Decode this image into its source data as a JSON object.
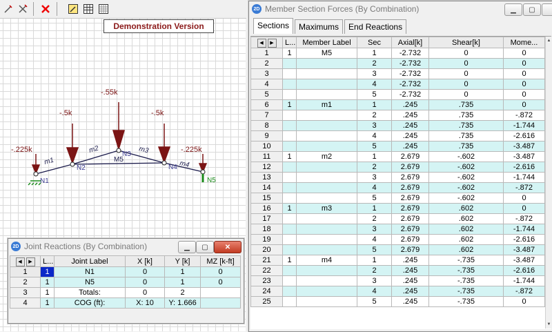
{
  "banner": "Demonstration Version",
  "joint_reactions": {
    "title": "Joint Reactions (By Combination)",
    "columns": [
      "L...",
      "Joint Label",
      "X [k]",
      "Y [k]",
      "MZ [k-ft]"
    ],
    "rows": [
      {
        "n": "1",
        "lc": "1",
        "label": "N1",
        "x": "0",
        "y": "1",
        "mz": "0"
      },
      {
        "n": "2",
        "lc": "1",
        "label": "N5",
        "x": "0",
        "y": "1",
        "mz": "0"
      },
      {
        "n": "3",
        "lc": "1",
        "label": "Totals:",
        "x": "0",
        "y": "2",
        "mz": ""
      },
      {
        "n": "4",
        "lc": "1",
        "label": "COG (ft):",
        "x": "X: 10",
        "y": "Y: 1.666",
        "mz": ""
      }
    ]
  },
  "section_forces": {
    "title": "Member Section Forces (By Combination)",
    "tabs": [
      "Sections",
      "Maximums",
      "End Reactions"
    ],
    "columns": [
      "L...",
      "Member Label",
      "Sec",
      "Axial[k]",
      "Shear[k]",
      "Mome..."
    ],
    "rows": [
      {
        "n": "1",
        "lc": "1",
        "m": "M5",
        "s": "1",
        "a": "-2.732",
        "v": "0",
        "mo": "0"
      },
      {
        "n": "2",
        "lc": "",
        "m": "",
        "s": "2",
        "a": "-2.732",
        "v": "0",
        "mo": "0"
      },
      {
        "n": "3",
        "lc": "",
        "m": "",
        "s": "3",
        "a": "-2.732",
        "v": "0",
        "mo": "0"
      },
      {
        "n": "4",
        "lc": "",
        "m": "",
        "s": "4",
        "a": "-2.732",
        "v": "0",
        "mo": "0"
      },
      {
        "n": "5",
        "lc": "",
        "m": "",
        "s": "5",
        "a": "-2.732",
        "v": "0",
        "mo": "0"
      },
      {
        "n": "6",
        "lc": "1",
        "m": "m1",
        "s": "1",
        "a": ".245",
        "v": ".735",
        "mo": "0"
      },
      {
        "n": "7",
        "lc": "",
        "m": "",
        "s": "2",
        "a": ".245",
        "v": ".735",
        "mo": "-.872"
      },
      {
        "n": "8",
        "lc": "",
        "m": "",
        "s": "3",
        "a": ".245",
        "v": ".735",
        "mo": "-1.744"
      },
      {
        "n": "9",
        "lc": "",
        "m": "",
        "s": "4",
        "a": ".245",
        "v": ".735",
        "mo": "-2.616"
      },
      {
        "n": "10",
        "lc": "",
        "m": "",
        "s": "5",
        "a": ".245",
        "v": ".735",
        "mo": "-3.487"
      },
      {
        "n": "11",
        "lc": "1",
        "m": "m2",
        "s": "1",
        "a": "2.679",
        "v": "-.602",
        "mo": "-3.487"
      },
      {
        "n": "12",
        "lc": "",
        "m": "",
        "s": "2",
        "a": "2.679",
        "v": "-.602",
        "mo": "-2.616"
      },
      {
        "n": "13",
        "lc": "",
        "m": "",
        "s": "3",
        "a": "2.679",
        "v": "-.602",
        "mo": "-1.744"
      },
      {
        "n": "14",
        "lc": "",
        "m": "",
        "s": "4",
        "a": "2.679",
        "v": "-.602",
        "mo": "-.872"
      },
      {
        "n": "15",
        "lc": "",
        "m": "",
        "s": "5",
        "a": "2.679",
        "v": "-.602",
        "mo": "0"
      },
      {
        "n": "16",
        "lc": "1",
        "m": "m3",
        "s": "1",
        "a": "2.679",
        "v": ".602",
        "mo": "0"
      },
      {
        "n": "17",
        "lc": "",
        "m": "",
        "s": "2",
        "a": "2.679",
        "v": ".602",
        "mo": "-.872"
      },
      {
        "n": "18",
        "lc": "",
        "m": "",
        "s": "3",
        "a": "2.679",
        "v": ".602",
        "mo": "-1.744"
      },
      {
        "n": "19",
        "lc": "",
        "m": "",
        "s": "4",
        "a": "2.679",
        "v": ".602",
        "mo": "-2.616"
      },
      {
        "n": "20",
        "lc": "",
        "m": "",
        "s": "5",
        "a": "2.679",
        "v": ".602",
        "mo": "-3.487"
      },
      {
        "n": "21",
        "lc": "1",
        "m": "m4",
        "s": "1",
        "a": ".245",
        "v": "-.735",
        "mo": "-3.487"
      },
      {
        "n": "22",
        "lc": "",
        "m": "",
        "s": "2",
        "a": ".245",
        "v": "-.735",
        "mo": "-2.616"
      },
      {
        "n": "23",
        "lc": "",
        "m": "",
        "s": "3",
        "a": ".245",
        "v": "-.735",
        "mo": "-1.744"
      },
      {
        "n": "24",
        "lc": "",
        "m": "",
        "s": "4",
        "a": ".245",
        "v": "-.735",
        "mo": "-.872"
      },
      {
        "n": "25",
        "lc": "",
        "m": "",
        "s": "5",
        "a": ".245",
        "v": "-.735",
        "mo": "0"
      }
    ]
  },
  "model": {
    "loads": [
      "-.225k",
      "-.5k",
      "-.55k",
      "-.5k",
      "-.225k"
    ],
    "nodes": [
      "N1",
      "N2",
      "N3",
      "N4",
      "N5"
    ],
    "members": [
      "m1",
      "m2",
      "M5",
      "m3",
      "m4"
    ]
  },
  "colors": {
    "cyan_cell": "#d4f4f4",
    "load": "#7b1414",
    "banner": "#8b1a1a",
    "member": "#1a1a4a",
    "node_label": "#3a3a90",
    "support": "#1a8a1a"
  },
  "icons": [
    "pencil-icon",
    "cross-icon",
    "delete-icon",
    "edit-icon",
    "table-icon",
    "grid-icon",
    "app-2d-icon",
    "minimize-icon",
    "maximize-icon",
    "close-icon",
    "nav-left-icon",
    "nav-right-icon",
    "scroll-up-icon",
    "scroll-down-icon"
  ]
}
